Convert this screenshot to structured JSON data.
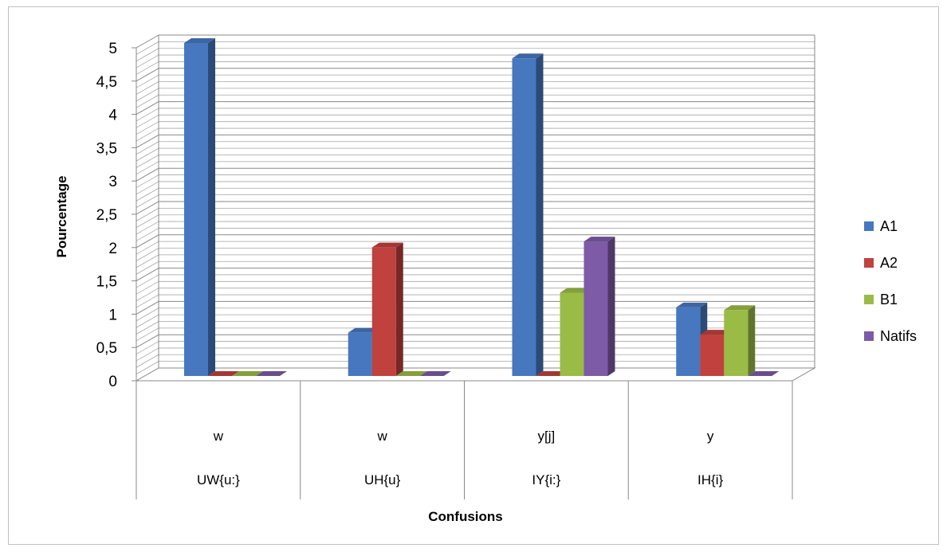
{
  "chart_data": {
    "type": "bar",
    "title": "",
    "xlabel": "Confusions",
    "ylabel": "Pourcentage",
    "ylim": [
      0,
      5
    ],
    "ytick_labels": [
      "0",
      "0,5",
      "1",
      "1,5",
      "2",
      "2,5",
      "3",
      "3,5",
      "4",
      "4,5",
      "5"
    ],
    "yticks": [
      0,
      0.5,
      1,
      1.5,
      2,
      2.5,
      3,
      3.5,
      4,
      4.5,
      5
    ],
    "grid_step": 0.1,
    "grid": true,
    "three_d": true,
    "legend_position": "right",
    "categories": [
      {
        "sub": "w",
        "main": "UW{u:}"
      },
      {
        "sub": "w",
        "main": "UH{u}"
      },
      {
        "sub": "y[j]",
        "main": "IY{i:}"
      },
      {
        "sub": "y",
        "main": "IH{i}"
      }
    ],
    "series": [
      {
        "name": "A1",
        "color": "#4677bf",
        "values": [
          5.0,
          0.65,
          4.77,
          1.03
        ]
      },
      {
        "name": "A2",
        "color": "#c0413d",
        "values": [
          0,
          1.93,
          0,
          0.62
        ]
      },
      {
        "name": "B1",
        "color": "#9bbb47",
        "values": [
          0,
          0,
          1.25,
          0.99
        ]
      },
      {
        "name": "Natifs",
        "color": "#7d5ba6",
        "values": [
          0,
          0,
          2.02,
          0
        ]
      }
    ]
  }
}
